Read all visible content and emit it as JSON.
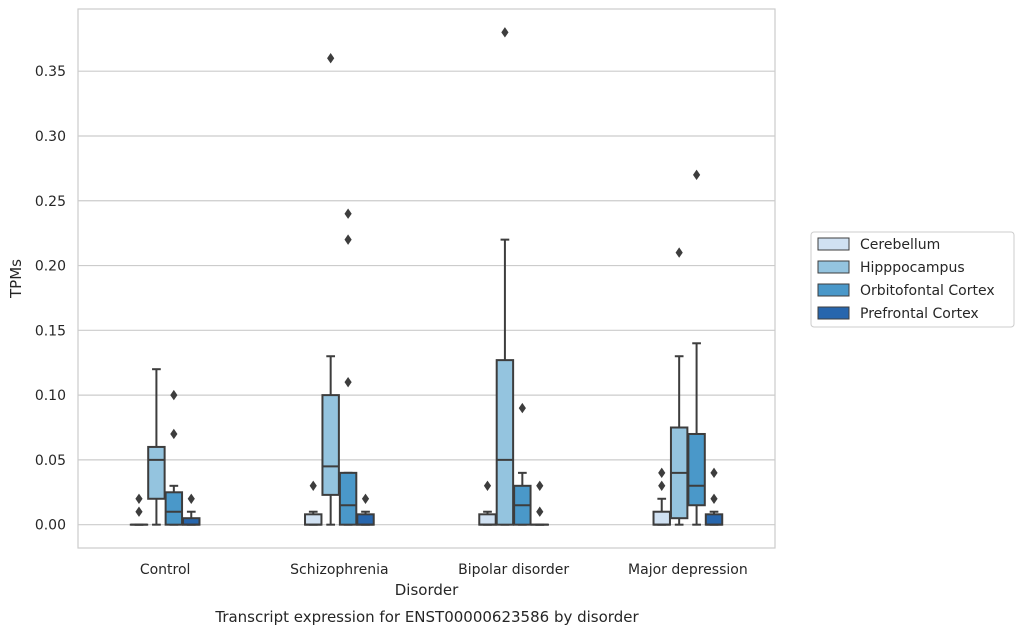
{
  "chart_data": {
    "type": "box",
    "caption": "Transcript expression for ENST00000623586 by disorder",
    "xlabel": "Disorder",
    "ylabel": "TPMs",
    "ylim": [
      -0.018,
      0.398
    ],
    "yticks": [
      "0.00",
      "0.05",
      "0.10",
      "0.15",
      "0.20",
      "0.25",
      "0.30",
      "0.35"
    ],
    "ytick_values": [
      0.0,
      0.05,
      0.1,
      0.15,
      0.2,
      0.25,
      0.3,
      0.35
    ],
    "grid": "horizontal",
    "legend_position": "right",
    "categories": [
      "Control",
      "Schizophrenia",
      "Bipolar disorder",
      "Major depression"
    ],
    "series": [
      {
        "name": "Cerebellum",
        "color": "#d0e1f2",
        "boxes": [
          {
            "whislo": 0.0,
            "q1": 0.0,
            "med": 0.0,
            "q3": 0.0,
            "whishi": 0.0,
            "fliers": [
              0.01,
              0.02
            ]
          },
          {
            "whislo": 0.0,
            "q1": 0.0,
            "med": 0.0,
            "q3": 0.008,
            "whishi": 0.01,
            "fliers": [
              0.03
            ]
          },
          {
            "whislo": 0.0,
            "q1": 0.0,
            "med": 0.0,
            "q3": 0.008,
            "whishi": 0.01,
            "fliers": [
              0.03
            ]
          },
          {
            "whislo": 0.0,
            "q1": 0.0,
            "med": 0.0,
            "q3": 0.01,
            "whishi": 0.02,
            "fliers": [
              0.03,
              0.04
            ]
          }
        ]
      },
      {
        "name": "Hipppocampus",
        "color": "#94c4df",
        "boxes": [
          {
            "whislo": 0.0,
            "q1": 0.02,
            "med": 0.05,
            "q3": 0.06,
            "whishi": 0.12,
            "fliers": []
          },
          {
            "whislo": 0.0,
            "q1": 0.023,
            "med": 0.045,
            "q3": 0.1,
            "whishi": 0.13,
            "fliers": [
              0.36
            ]
          },
          {
            "whislo": 0.0,
            "q1": 0.0,
            "med": 0.05,
            "q3": 0.127,
            "whishi": 0.22,
            "fliers": [
              0.38
            ]
          },
          {
            "whislo": 0.0,
            "q1": 0.005,
            "med": 0.04,
            "q3": 0.075,
            "whishi": 0.13,
            "fliers": [
              0.21
            ]
          }
        ]
      },
      {
        "name": "Orbitofontal Cortex",
        "color": "#4a98c9",
        "boxes": [
          {
            "whislo": 0.0,
            "q1": 0.0,
            "med": 0.01,
            "q3": 0.025,
            "whishi": 0.03,
            "fliers": [
              0.07,
              0.1
            ]
          },
          {
            "whislo": 0.0,
            "q1": 0.0,
            "med": 0.015,
            "q3": 0.04,
            "whishi": 0.04,
            "fliers": [
              0.11,
              0.22,
              0.24
            ]
          },
          {
            "whislo": 0.0,
            "q1": 0.0,
            "med": 0.015,
            "q3": 0.03,
            "whishi": 0.04,
            "fliers": [
              0.09
            ]
          },
          {
            "whislo": 0.0,
            "q1": 0.015,
            "med": 0.03,
            "q3": 0.07,
            "whishi": 0.14,
            "fliers": [
              0.27
            ]
          }
        ]
      },
      {
        "name": "Prefrontal Cortex",
        "color": "#2766ad",
        "boxes": [
          {
            "whislo": 0.0,
            "q1": 0.0,
            "med": 0.0,
            "q3": 0.005,
            "whishi": 0.01,
            "fliers": [
              0.02
            ]
          },
          {
            "whislo": 0.0,
            "q1": 0.0,
            "med": 0.0,
            "q3": 0.008,
            "whishi": 0.01,
            "fliers": [
              0.02
            ]
          },
          {
            "whislo": 0.0,
            "q1": 0.0,
            "med": 0.0,
            "q3": 0.0,
            "whishi": 0.0,
            "fliers": [
              0.01,
              0.03
            ]
          },
          {
            "whislo": 0.0,
            "q1": 0.0,
            "med": 0.0,
            "q3": 0.008,
            "whishi": 0.01,
            "fliers": [
              0.02,
              0.04
            ]
          }
        ]
      }
    ]
  }
}
